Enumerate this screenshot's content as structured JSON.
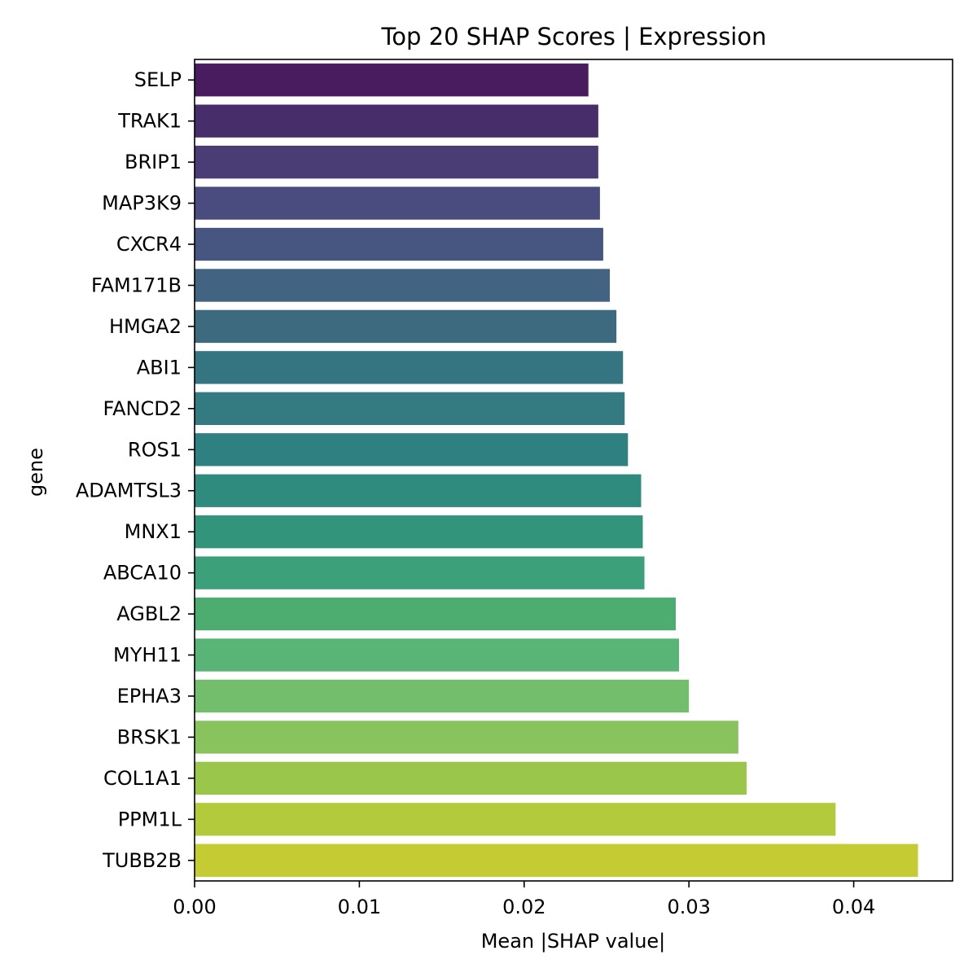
{
  "chart_data": {
    "type": "bar",
    "orientation": "horizontal",
    "title": "Top 20 SHAP Scores | Expression",
    "xlabel": "Mean |SHAP value|",
    "ylabel": "gene",
    "xlim": [
      0,
      0.046
    ],
    "xticks": [
      0.0,
      0.01,
      0.02,
      0.03,
      0.04
    ],
    "xtick_labels": [
      "0.00",
      "0.01",
      "0.02",
      "0.03",
      "0.04"
    ],
    "grid": false,
    "colormap": "viridis",
    "categories": [
      "SELP",
      "TRAK1",
      "BRIP1",
      "MAP3K9",
      "CXCR4",
      "FAM171B",
      "HMGA2",
      "ABI1",
      "FANCD2",
      "ROS1",
      "ADAMTSL3",
      "MNX1",
      "ABCA10",
      "AGBL2",
      "MYH11",
      "EPHA3",
      "BRSK1",
      "COL1A1",
      "PPM1L",
      "TUBB2B"
    ],
    "values": [
      0.0239,
      0.0245,
      0.0245,
      0.0246,
      0.0248,
      0.0252,
      0.0256,
      0.026,
      0.0261,
      0.0263,
      0.0271,
      0.0272,
      0.0273,
      0.0292,
      0.0294,
      0.03,
      0.033,
      0.0335,
      0.0389,
      0.0439
    ],
    "colors": [
      "#481c5e",
      "#472d69",
      "#4a3d76",
      "#4a4b7e",
      "#465681",
      "#426382",
      "#3e6a80",
      "#357581",
      "#337b81",
      "#2e8180",
      "#2e8b7e",
      "#31947b",
      "#3ca07a",
      "#4dad71",
      "#59b575",
      "#72be6c",
      "#89c35e",
      "#9ac64c",
      "#b2ca3c",
      "#c4cb33"
    ]
  }
}
